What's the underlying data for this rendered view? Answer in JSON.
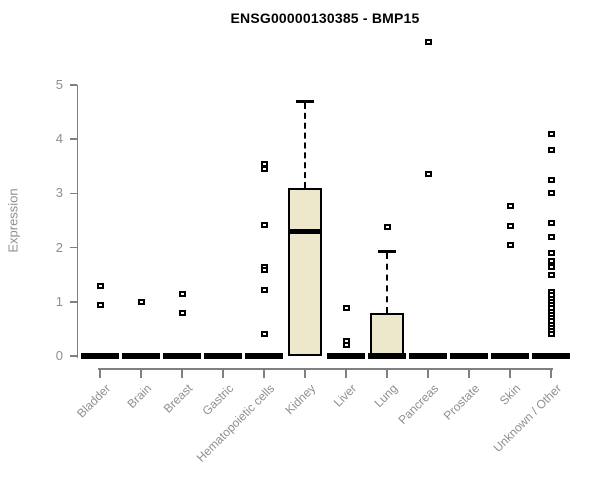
{
  "title": "ENSG00000130385 - BMP15",
  "chart_data": {
    "type": "boxplot",
    "title": "ENSG00000130385 - BMP15",
    "xlabel": "",
    "ylabel": "Expression",
    "ylim": [
      0,
      5
    ],
    "yticks": [
      0,
      1,
      2,
      3,
      4,
      5
    ],
    "grid": false,
    "legend": false,
    "categories": [
      "Bladder",
      "Brain",
      "Breast",
      "Gastric",
      "Hematopoietic cells",
      "Kidney",
      "Liver",
      "Lung",
      "Pancreas",
      "Prostate",
      "Skin",
      "Unknown / Other"
    ],
    "boxes": [
      {
        "category": "Bladder",
        "q1": 0,
        "median": 0,
        "q3": 0,
        "whisker_low": 0,
        "whisker_high": 0,
        "outliers": [
          1.3,
          0.95
        ]
      },
      {
        "category": "Brain",
        "q1": 0,
        "median": 0,
        "q3": 0,
        "whisker_low": 0,
        "whisker_high": 0,
        "outliers": [
          1.0
        ]
      },
      {
        "category": "Breast",
        "q1": 0,
        "median": 0,
        "q3": 0,
        "whisker_low": 0,
        "whisker_high": 0,
        "outliers": [
          1.15,
          0.8
        ]
      },
      {
        "category": "Gastric",
        "q1": 0,
        "median": 0,
        "q3": 0,
        "whisker_low": 0,
        "whisker_high": 0,
        "outliers": []
      },
      {
        "category": "Hematopoietic cells",
        "q1": 0,
        "median": 0,
        "q3": 0,
        "whisker_low": 0,
        "whisker_high": 0,
        "outliers": [
          3.55,
          3.45,
          2.42,
          1.65,
          1.58,
          1.22,
          0.4
        ]
      },
      {
        "category": "Kidney",
        "q1": 0,
        "median": 2.3,
        "q3": 3.1,
        "whisker_low": 0,
        "whisker_high": 4.7,
        "outliers": []
      },
      {
        "category": "Liver",
        "q1": 0,
        "median": 0,
        "q3": 0,
        "whisker_low": 0,
        "whisker_high": 0,
        "outliers": [
          0.88,
          0.27,
          0.2
        ]
      },
      {
        "category": "Lung",
        "q1": 0,
        "median": 0,
        "q3": 0.8,
        "whisker_low": 0,
        "whisker_high": 1.93,
        "outliers": [
          2.38
        ]
      },
      {
        "category": "Pancreas",
        "q1": 0,
        "median": 0,
        "q3": 0,
        "whisker_low": 0,
        "whisker_high": 0,
        "outliers": [
          5.8,
          3.35
        ]
      },
      {
        "category": "Prostate",
        "q1": 0,
        "median": 0,
        "q3": 0,
        "whisker_low": 0,
        "whisker_high": 0,
        "outliers": []
      },
      {
        "category": "Skin",
        "q1": 0,
        "median": 0,
        "q3": 0,
        "whisker_low": 0,
        "whisker_high": 0,
        "outliers": [
          2.77,
          2.4,
          2.05
        ]
      },
      {
        "category": "Unknown / Other",
        "q1": 0,
        "median": 0,
        "q3": 0,
        "whisker_low": 0,
        "whisker_high": 0,
        "outliers": [
          4.1,
          3.8,
          3.25,
          3.0,
          2.45,
          2.2,
          1.9,
          1.75,
          1.65,
          1.5,
          1.18,
          1.12,
          1.06,
          1.0,
          0.94,
          0.88,
          0.82,
          0.76,
          0.7,
          0.64,
          0.58,
          0.52,
          0.46,
          0.4
        ]
      }
    ],
    "colors": {
      "box_fill": "#ede7cc",
      "box_border": "#000000",
      "median": "#000000",
      "outlier_border": "#000000",
      "axis": "#808080",
      "tick_label": "#8f8f8f",
      "title": "#000000"
    }
  }
}
